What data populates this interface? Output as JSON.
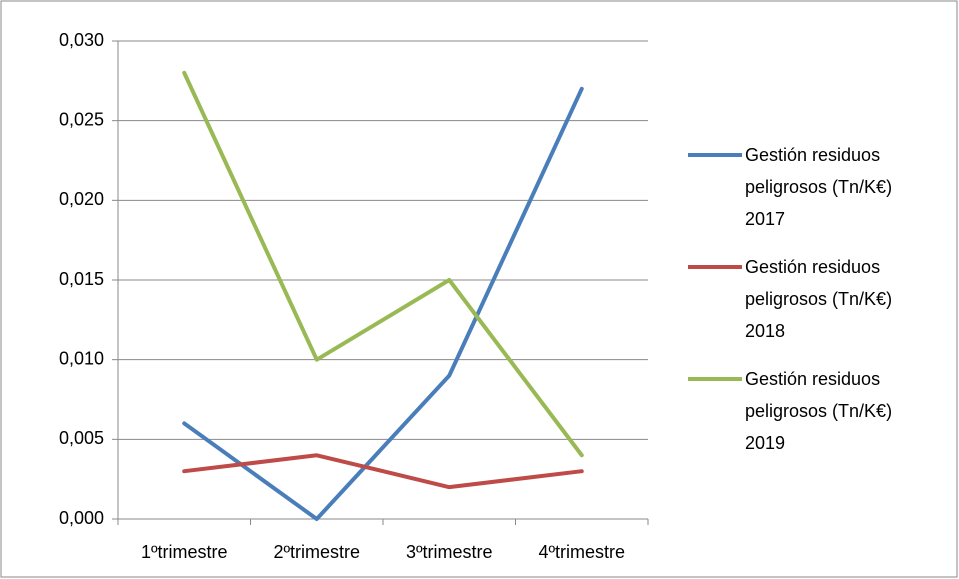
{
  "chart_data": {
    "type": "line",
    "categories": [
      "1ºtrimestre",
      "2ºtrimestre",
      "3ºtrimestre",
      "4ºtrimestre"
    ],
    "series": [
      {
        "name": "Gestión residuos peligrosos (Tn/K€) 2017",
        "color": "#4a7ebb",
        "values": [
          0.006,
          0,
          0.009,
          0.027
        ]
      },
      {
        "name": "Gestión residuos peligrosos (Tn/K€) 2018",
        "color": "#be4b48",
        "values": [
          0.003,
          0.004,
          0.002,
          0.003
        ]
      },
      {
        "name": "Gestión residuos peligrosos (Tn/K€) 2019",
        "color": "#98b954",
        "values": [
          0.028,
          0.01,
          0.015,
          0.004
        ]
      }
    ],
    "ylim": [
      0,
      0.03
    ],
    "yticks": [
      {
        "value": 0,
        "label": "0,000"
      },
      {
        "value": 0.005,
        "label": "0,005"
      },
      {
        "value": 0.01,
        "label": "0,010"
      },
      {
        "value": 0.015,
        "label": "0,015"
      },
      {
        "value": 0.02,
        "label": "0,020"
      },
      {
        "value": 0.025,
        "label": "0,025"
      },
      {
        "value": 0.03,
        "label": "0,030"
      }
    ],
    "grid": true,
    "legend": "right"
  }
}
